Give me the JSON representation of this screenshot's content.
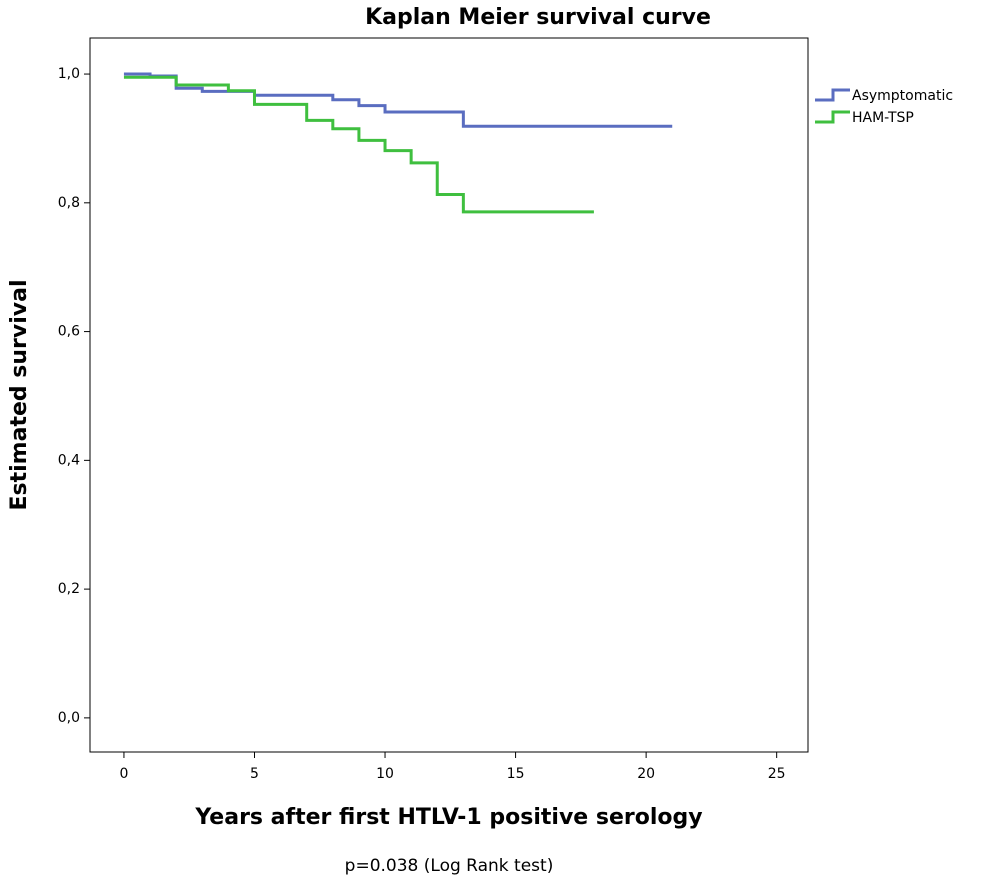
{
  "chart_data": {
    "type": "step",
    "title": "Kaplan Meier survival curve",
    "x_label": "Years after first HTLV-1 positive serology",
    "y_label": "Estimated survival",
    "annotation": "p=0.038 (Log Rank test)",
    "xlim": [
      -1.3,
      26.2
    ],
    "ylim": [
      -0.053,
      1.056
    ],
    "xticks": [
      0,
      5,
      10,
      15,
      20,
      25
    ],
    "yticks": [
      {
        "value": 0,
        "label": "0,0"
      },
      {
        "value": 0.2,
        "label": "0,2"
      },
      {
        "value": 0.4,
        "label": "0,4"
      },
      {
        "value": 0.6,
        "label": "0,6"
      },
      {
        "value": 0.8,
        "label": "0,8"
      },
      {
        "value": 1,
        "label": "1,0"
      }
    ],
    "series": [
      {
        "name": "Asymptomatic",
        "color": "#5a6dc0",
        "x": [
          0,
          1,
          2,
          3,
          5,
          8,
          9,
          10,
          13,
          21
        ],
        "values": [
          1.0,
          0.997,
          0.978,
          0.973,
          0.967,
          0.96,
          0.951,
          0.941,
          0.919,
          0.919
        ]
      },
      {
        "name": "HAM-TSP",
        "color": "#3fbf3f",
        "x": [
          0,
          2,
          4,
          5,
          7,
          8,
          9,
          10,
          11,
          12,
          13,
          18
        ],
        "values": [
          0.995,
          0.983,
          0.974,
          0.953,
          0.928,
          0.915,
          0.897,
          0.881,
          0.862,
          0.813,
          0.786,
          0.786
        ]
      }
    ]
  }
}
